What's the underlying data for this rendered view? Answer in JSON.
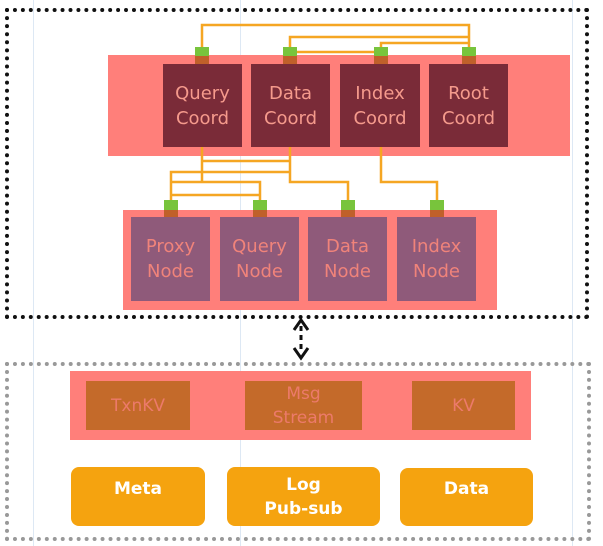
{
  "coordinators": [
    "Query\nCoord",
    "Data\nCoord",
    "Index\nCoord",
    "Root\nCoord"
  ],
  "nodes": [
    "Proxy\nNode",
    "Query\nNode",
    "Data\nNode",
    "Index\nNode"
  ],
  "storage_services": [
    "TxnKV",
    "Msg\nStream",
    "KV"
  ],
  "storage_backends": [
    "Meta",
    "Log\nPub-sub",
    "Data"
  ],
  "colors": {
    "band": "#ff7f7a",
    "coord": "#7a2b38",
    "node": "#8f5a7a",
    "connector": "#f5a623",
    "port": "#78c43c",
    "backend": "#f5a30f"
  }
}
